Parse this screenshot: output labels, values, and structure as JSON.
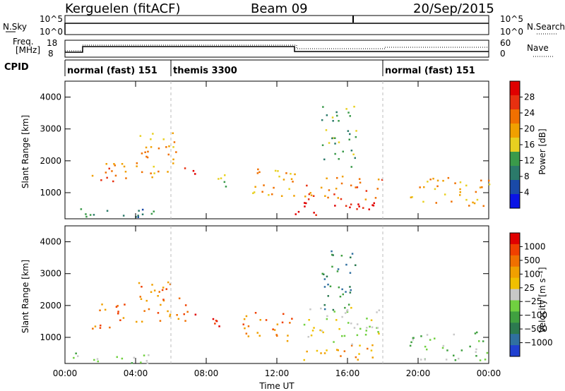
{
  "header": {
    "station": "Kerguelen (fitACF)",
    "beam": "Beam 09",
    "date": "20/Sep/2015"
  },
  "top_panels": {
    "nsky_label": "N.Sky",
    "nsearch_label": "N.Search",
    "freq_label_1": "Freq.",
    "freq_label_2": "[MHz]",
    "nave_label": "Nave",
    "cpid_label": "CPID",
    "nsky_ticks": [
      "10^5",
      "10^0"
    ],
    "nsearch_ticks": [
      "10^5",
      "10^0"
    ],
    "freq_ticks": [
      "18",
      "8"
    ],
    "nave_ticks": [
      "60",
      "0"
    ]
  },
  "cpid_segments": [
    {
      "label": "normal (fast) 151",
      "start_hour": 0
    },
    {
      "label": "themis 3300",
      "start_hour": 6
    },
    {
      "label": "normal (fast) 151",
      "start_hour": 18
    }
  ],
  "power_colorbar": {
    "label": "Power [dB]",
    "ticks": [
      "28",
      "24",
      "20",
      "16",
      "12",
      "8",
      "4"
    ],
    "colors": [
      "#0a14e6",
      "#1a4aa8",
      "#2b7a6a",
      "#3a9a4a",
      "#e8d020",
      "#f0a000",
      "#f07000",
      "#e83010",
      "#e00000"
    ]
  },
  "velocity_colorbar": {
    "label": "Velocity [m s⁻¹]",
    "ticks": [
      "1000",
      "500",
      "100",
      "25",
      "−25",
      "−100",
      "−500",
      "−1000"
    ],
    "colors": [
      "#2040d0",
      "#3070a0",
      "#2c7a50",
      "#40a040",
      "#70d040",
      "#c8c8c8",
      "#f0c000",
      "#f0a000",
      "#f07000",
      "#f04000",
      "#e00000"
    ]
  },
  "chart_data": [
    {
      "type": "heatmap",
      "panel": "power",
      "ylabel": "Slant Range [km]",
      "ylim": [
        180,
        4500
      ],
      "yticks": [
        "4000",
        "3000",
        "2000",
        "1000"
      ],
      "xlim_hours": [
        0,
        24
      ],
      "scatter_regions": [
        {
          "t0": 0.0,
          "t1": 5.0,
          "r0": 200,
          "r1": 550,
          "level": 2
        },
        {
          "t0": 1.5,
          "t1": 3.5,
          "r0": 1300,
          "r1": 2200,
          "level": 6
        },
        {
          "t0": 4.0,
          "t1": 6.6,
          "r0": 1500,
          "r1": 2900,
          "level": 5
        },
        {
          "t0": 6.5,
          "t1": 7.5,
          "r0": 1500,
          "r1": 1900,
          "level": 8
        },
        {
          "t0": 8.3,
          "t1": 9.3,
          "r0": 1200,
          "r1": 1800,
          "level": 4
        },
        {
          "t0": 10.0,
          "t1": 13.0,
          "r0": 900,
          "r1": 1800,
          "level": 5
        },
        {
          "t0": 13.0,
          "t1": 17.5,
          "r0": 300,
          "r1": 800,
          "level": 8
        },
        {
          "t0": 13.5,
          "t1": 18.0,
          "r0": 800,
          "r1": 1600,
          "level": 6
        },
        {
          "t0": 14.5,
          "t1": 16.5,
          "r0": 1800,
          "r1": 3800,
          "level": 3
        },
        {
          "t0": 19.5,
          "t1": 24.0,
          "r0": 600,
          "r1": 1500,
          "level": 5
        }
      ]
    },
    {
      "type": "heatmap",
      "panel": "velocity",
      "ylabel": "Slant Range [km]",
      "ylim": [
        180,
        4500
      ],
      "yticks": [
        "4000",
        "3000",
        "2000",
        "1000"
      ],
      "xlabel": "Time UT",
      "xticks": [
        "00:00",
        "04:00",
        "08:00",
        "12:00",
        "16:00",
        "20:00",
        "00:00"
      ],
      "xlim_hours": [
        0,
        24
      ],
      "scatter_regions": [
        {
          "t0": 0.0,
          "t1": 5.0,
          "r0": 200,
          "r1": 550,
          "level": 4
        },
        {
          "t0": 1.5,
          "t1": 3.5,
          "r0": 1300,
          "r1": 2200,
          "level": 8
        },
        {
          "t0": 4.0,
          "t1": 6.6,
          "r0": 1500,
          "r1": 2900,
          "level": 8
        },
        {
          "t0": 6.5,
          "t1": 7.5,
          "r0": 1500,
          "r1": 2100,
          "level": 9
        },
        {
          "t0": 8.3,
          "t1": 9.3,
          "r0": 1200,
          "r1": 1800,
          "level": 9
        },
        {
          "t0": 10.0,
          "t1": 13.0,
          "r0": 900,
          "r1": 1800,
          "level": 8
        },
        {
          "t0": 13.0,
          "t1": 17.5,
          "r0": 300,
          "r1": 800,
          "level": 7
        },
        {
          "t0": 13.5,
          "t1": 18.0,
          "r0": 800,
          "r1": 2000,
          "level": 5
        },
        {
          "t0": 14.5,
          "t1": 16.5,
          "r0": 1800,
          "r1": 3800,
          "level": 2
        },
        {
          "t0": 19.5,
          "t1": 24.0,
          "r0": 300,
          "r1": 1200,
          "level": 4
        }
      ]
    }
  ]
}
